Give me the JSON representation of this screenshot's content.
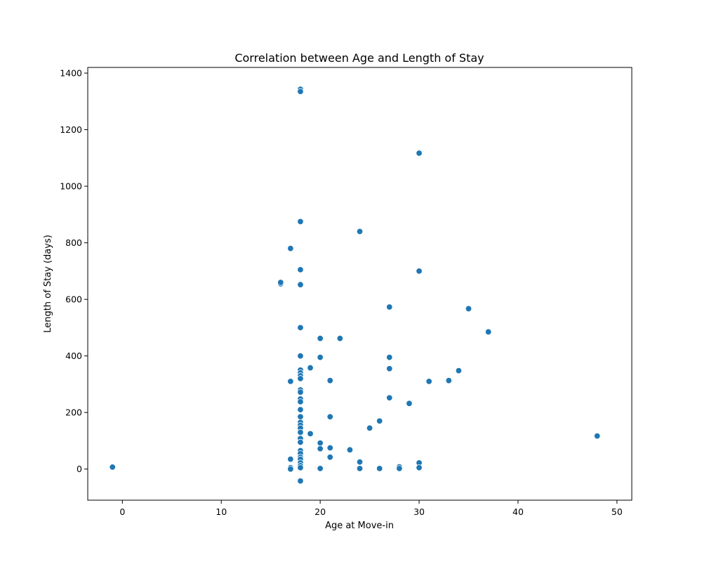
{
  "chart_data": {
    "type": "scatter",
    "title": "Correlation between Age and Length of Stay",
    "xlabel": "Age at Move-in",
    "ylabel": "Length of Stay (days)",
    "xlim": [
      -3.5,
      51.5
    ],
    "ylim": [
      -110,
      1420
    ],
    "xticks": [
      0,
      10,
      20,
      30,
      40,
      50
    ],
    "yticks": [
      0,
      200,
      400,
      600,
      800,
      1000,
      1200,
      1400
    ],
    "grid": false,
    "point_color": "#1f77b4",
    "points": [
      [
        -1,
        7
      ],
      [
        16,
        655
      ],
      [
        16,
        660
      ],
      [
        17,
        780
      ],
      [
        17,
        310
      ],
      [
        17,
        35
      ],
      [
        17,
        5
      ],
      [
        17,
        0
      ],
      [
        18,
        1343
      ],
      [
        18,
        1335
      ],
      [
        18,
        875
      ],
      [
        18,
        705
      ],
      [
        18,
        652
      ],
      [
        18,
        500
      ],
      [
        18,
        400
      ],
      [
        18,
        350
      ],
      [
        18,
        340
      ],
      [
        18,
        330
      ],
      [
        18,
        320
      ],
      [
        18,
        280
      ],
      [
        18,
        272
      ],
      [
        18,
        248
      ],
      [
        18,
        238
      ],
      [
        18,
        210
      ],
      [
        18,
        185
      ],
      [
        18,
        165
      ],
      [
        18,
        155
      ],
      [
        18,
        145
      ],
      [
        18,
        130
      ],
      [
        18,
        108
      ],
      [
        18,
        95
      ],
      [
        18,
        65
      ],
      [
        18,
        55
      ],
      [
        18,
        42
      ],
      [
        18,
        35
      ],
      [
        18,
        22
      ],
      [
        18,
        12
      ],
      [
        18,
        5
      ],
      [
        18,
        -42
      ],
      [
        19,
        358
      ],
      [
        19,
        125
      ],
      [
        20,
        462
      ],
      [
        20,
        395
      ],
      [
        20,
        92
      ],
      [
        20,
        72
      ],
      [
        20,
        2
      ],
      [
        21,
        313
      ],
      [
        21,
        185
      ],
      [
        21,
        75
      ],
      [
        21,
        42
      ],
      [
        22,
        462
      ],
      [
        23,
        68
      ],
      [
        24,
        840
      ],
      [
        24,
        25
      ],
      [
        24,
        2
      ],
      [
        25,
        145
      ],
      [
        26,
        170
      ],
      [
        26,
        2
      ],
      [
        27,
        573
      ],
      [
        27,
        395
      ],
      [
        27,
        355
      ],
      [
        27,
        252
      ],
      [
        28,
        8
      ],
      [
        28,
        2
      ],
      [
        29,
        232
      ],
      [
        30,
        1117
      ],
      [
        30,
        700
      ],
      [
        30,
        22
      ],
      [
        30,
        5
      ],
      [
        31,
        310
      ],
      [
        33,
        313
      ],
      [
        34,
        348
      ],
      [
        35,
        567
      ],
      [
        37,
        485
      ],
      [
        48,
        117
      ]
    ]
  }
}
